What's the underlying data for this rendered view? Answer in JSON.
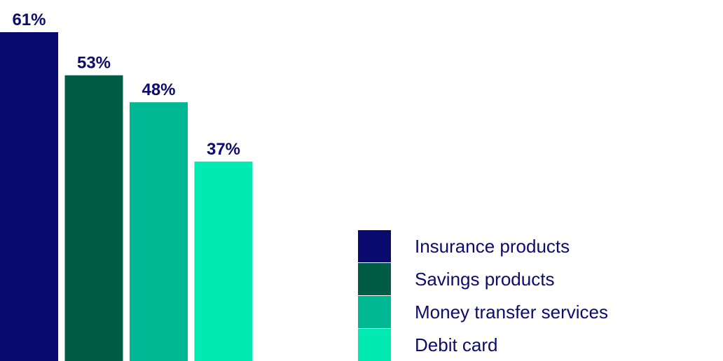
{
  "chart_data": {
    "type": "bar",
    "categories": [
      "Insurance products",
      "Savings products",
      "Money transfer services",
      "Debit card"
    ],
    "values": [
      61,
      53,
      48,
      37
    ],
    "value_labels": [
      "61%",
      "53%",
      "48%",
      "37%"
    ],
    "colors": [
      "#0a0a6e",
      "#005c45",
      "#00b894",
      "#00eab2"
    ]
  }
}
